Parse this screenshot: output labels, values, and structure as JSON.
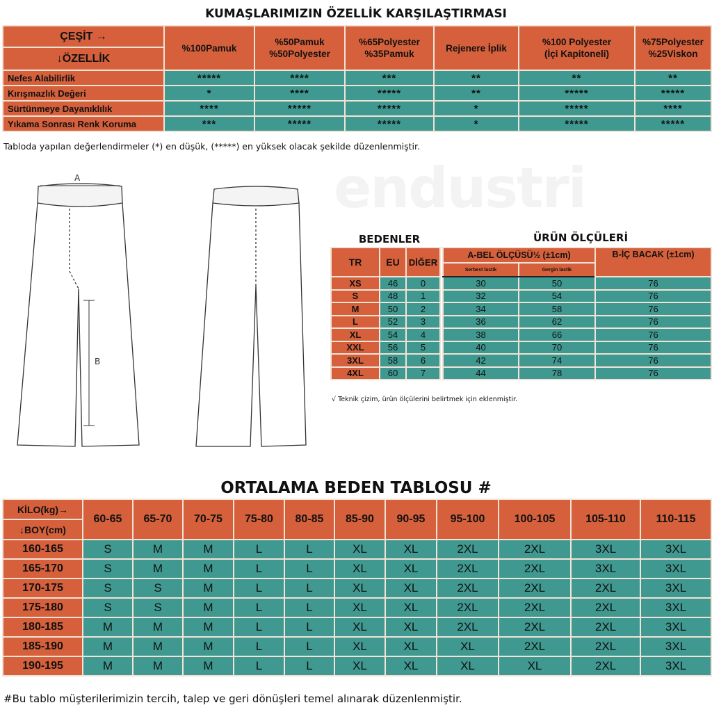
{
  "colors": {
    "header": "#d5603b",
    "cell": "#3f9990"
  },
  "fabric": {
    "title": "KUMAŞLARIMIZIN ÖZELLİK KARŞILAŞTIRMASI",
    "corner_top": "ÇEŞİT →",
    "corner_bottom": "↓ÖZELLİK",
    "columns": [
      "%100Pamuk",
      "%50Pamuk\n%50Polyester",
      "%65Polyester\n%35Pamuk",
      "Rejenere İplik",
      "%100 Polyester\n(İçi Kapitoneli)",
      "%75Polyester\n%25Viskon"
    ],
    "rows": [
      {
        "label": "Nefes Alabilirlik",
        "values": [
          "*****",
          "****",
          "***",
          "**",
          "**",
          "**"
        ]
      },
      {
        "label": "Kırışmazlık Değeri",
        "values": [
          "*",
          "****",
          "*****",
          "**",
          "*****",
          "*****"
        ]
      },
      {
        "label": "Sürtünmeye Dayanıklılık",
        "values": [
          "****",
          "*****",
          "*****",
          "*",
          "*****",
          "****"
        ]
      },
      {
        "label": "Yıkama Sonrası Renk Koruma",
        "values": [
          "***",
          "*****",
          "*****",
          "*",
          "*****",
          "*****"
        ]
      }
    ],
    "note": "Tabloda yapılan değerlendirmeler (*) en düşük, (*****) en yüksek olacak şekilde düzenlenmiştir."
  },
  "drawing": {
    "label_a": "A",
    "label_b": "B"
  },
  "watermark": "endustri",
  "sizes": {
    "bedenler_title": "BEDENLER",
    "olculer_title": "ÜRÜN ÖLÇÜLERİ",
    "headers": {
      "tr": "TR",
      "eu": "EU",
      "diger": "DİĞER",
      "a": "A-BEL ÖLÇÜSÜ½ (±1cm)",
      "a_free": "Serbest lastik",
      "a_stretch": "Gergin lastik",
      "b": "B-İÇ BACAK (±1cm)"
    },
    "rows": [
      [
        "XS",
        "46",
        "0",
        "30",
        "50",
        "76"
      ],
      [
        "S",
        "48",
        "1",
        "32",
        "54",
        "76"
      ],
      [
        "M",
        "50",
        "2",
        "34",
        "58",
        "76"
      ],
      [
        "L",
        "52",
        "3",
        "36",
        "62",
        "76"
      ],
      [
        "XL",
        "54",
        "4",
        "38",
        "66",
        "76"
      ],
      [
        "XXL",
        "56",
        "5",
        "40",
        "70",
        "76"
      ],
      [
        "3XL",
        "58",
        "6",
        "42",
        "74",
        "76"
      ],
      [
        "4XL",
        "60",
        "7",
        "44",
        "78",
        "76"
      ]
    ],
    "note": "√ Teknik çizim, ürün ölçülerini belirtmek için eklenmiştir."
  },
  "avg": {
    "title": "ORTALAMA BEDEN TABLOSU #",
    "corner_top": "KİLO(kg)→",
    "corner_bottom": "↓BOY(cm)",
    "columns": [
      "60-65",
      "65-70",
      "70-75",
      "75-80",
      "80-85",
      "85-90",
      "90-95",
      "95-100",
      "100-105",
      "105-110",
      "110-115"
    ],
    "rows": [
      {
        "label": "160-165",
        "values": [
          "S",
          "M",
          "M",
          "L",
          "L",
          "XL",
          "XL",
          "2XL",
          "2XL",
          "3XL",
          "3XL"
        ]
      },
      {
        "label": "165-170",
        "values": [
          "S",
          "M",
          "M",
          "L",
          "L",
          "XL",
          "XL",
          "2XL",
          "2XL",
          "3XL",
          "3XL"
        ]
      },
      {
        "label": "170-175",
        "values": [
          "S",
          "S",
          "M",
          "L",
          "L",
          "XL",
          "XL",
          "2XL",
          "2XL",
          "2XL",
          "3XL"
        ]
      },
      {
        "label": "175-180",
        "values": [
          "S",
          "S",
          "M",
          "L",
          "L",
          "XL",
          "XL",
          "2XL",
          "2XL",
          "2XL",
          "3XL"
        ]
      },
      {
        "label": "180-185",
        "values": [
          "M",
          "M",
          "M",
          "L",
          "L",
          "XL",
          "XL",
          "2XL",
          "2XL",
          "2XL",
          "3XL"
        ]
      },
      {
        "label": "185-190",
        "values": [
          "M",
          "M",
          "M",
          "L",
          "L",
          "XL",
          "XL",
          "XL",
          "2XL",
          "2XL",
          "3XL"
        ]
      },
      {
        "label": "190-195",
        "values": [
          "M",
          "M",
          "M",
          "L",
          "L",
          "XL",
          "XL",
          "XL",
          "XL",
          "2XL",
          "3XL"
        ]
      }
    ],
    "note": "#Bu tablo müşterilerimizin tercih, talep ve geri dönüşleri temel alınarak düzenlenmiştir."
  }
}
